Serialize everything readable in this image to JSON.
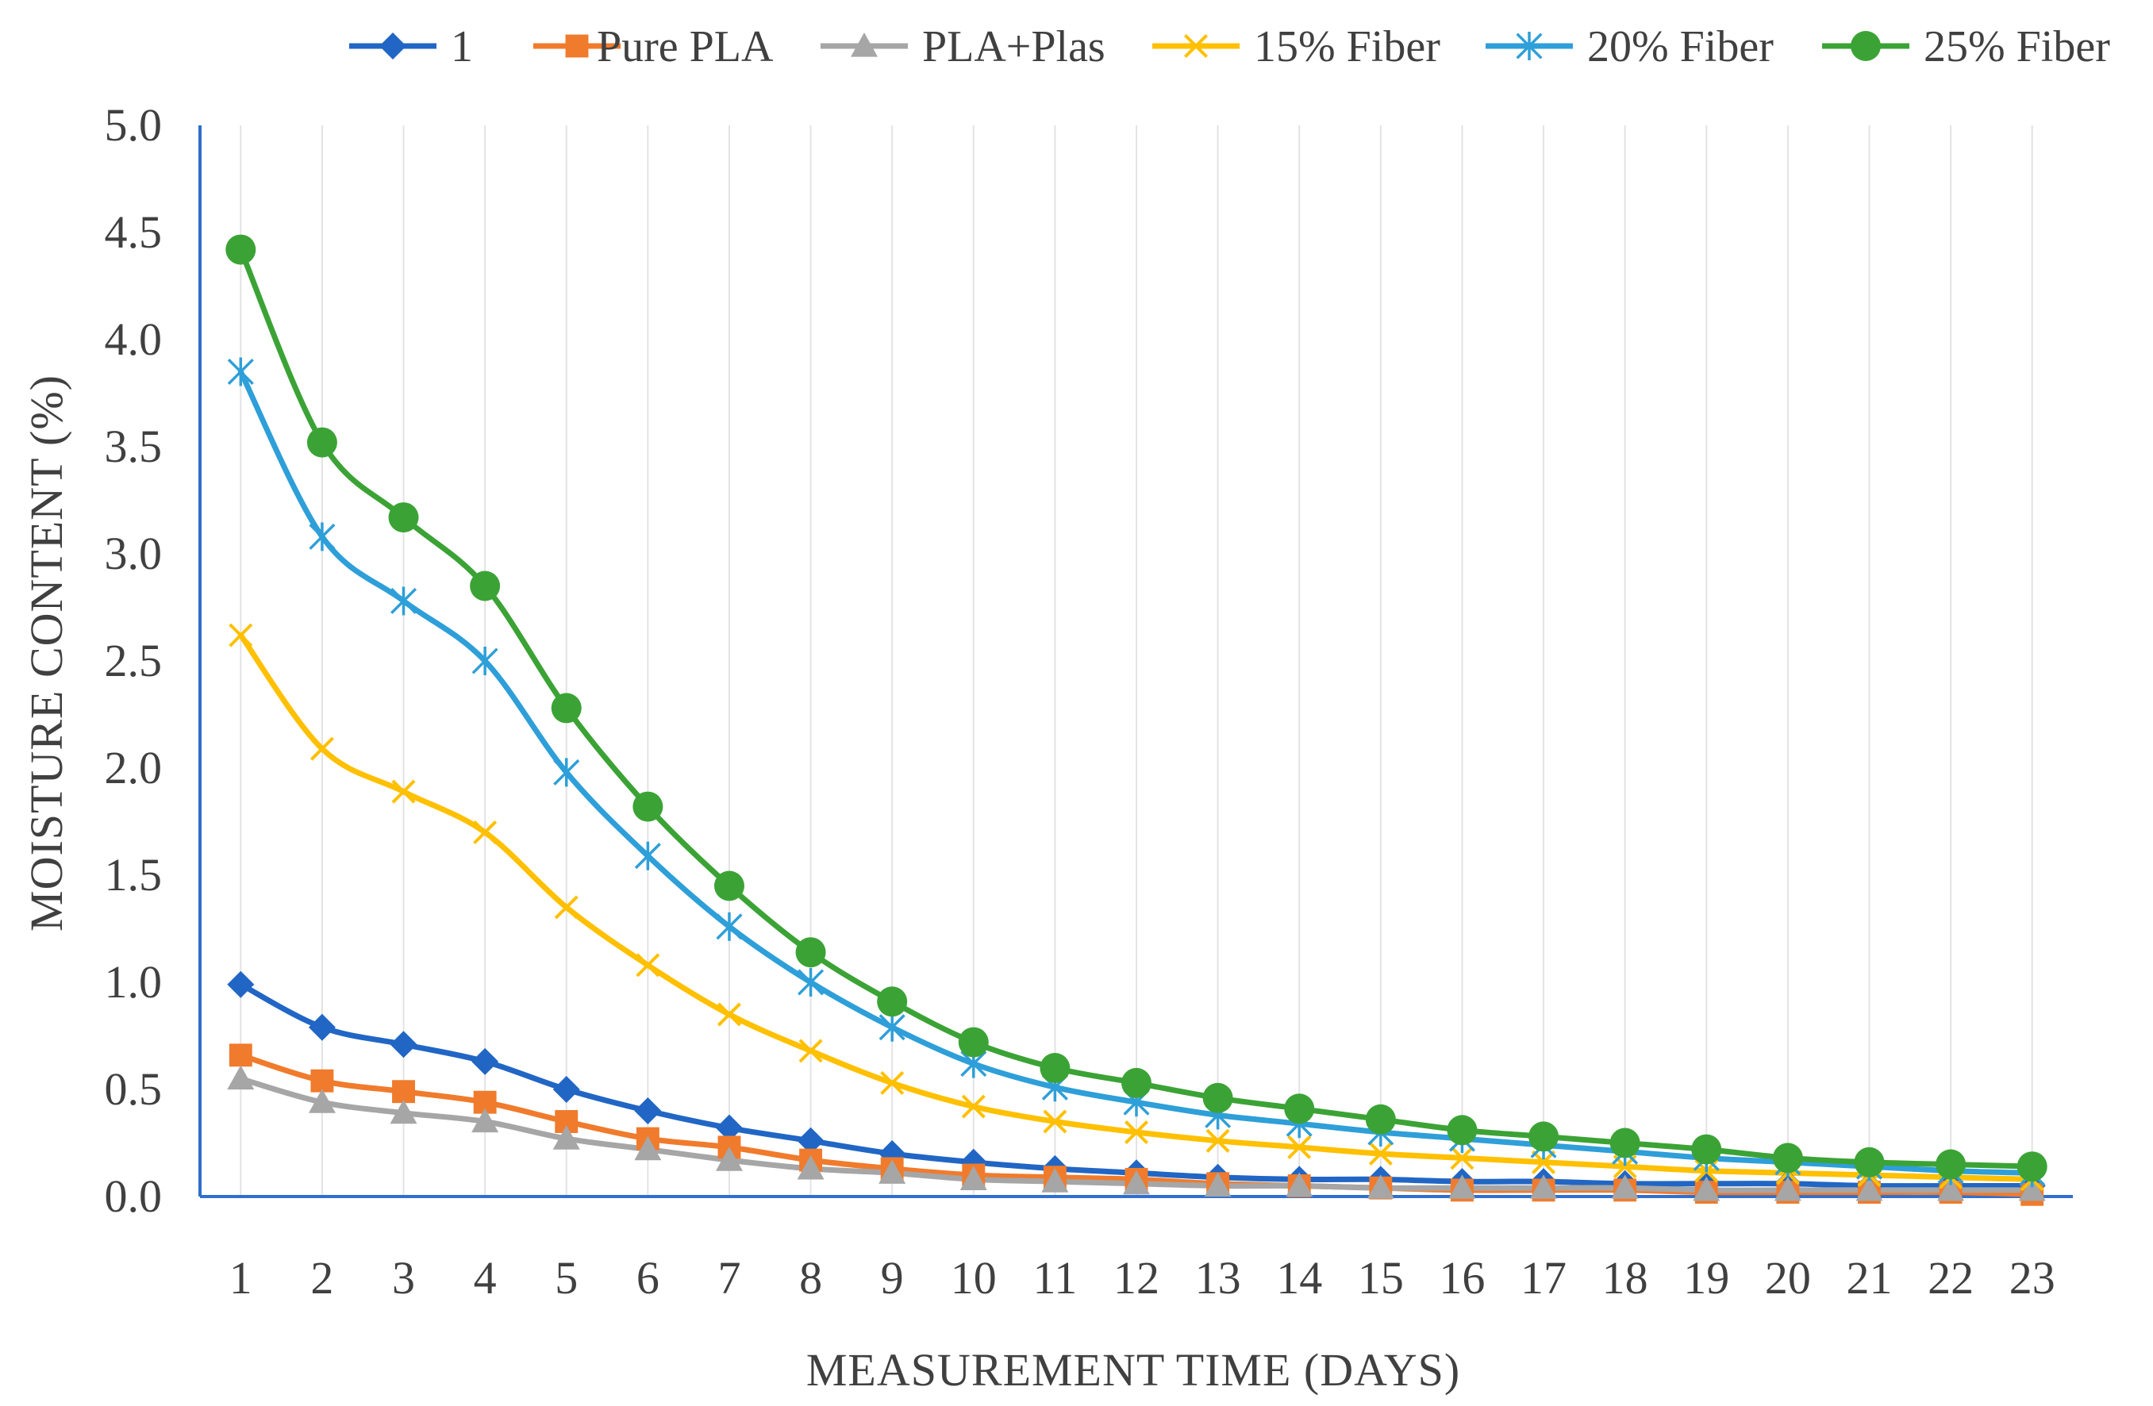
{
  "chart_data": {
    "type": "line",
    "title": "",
    "xlabel": "MEASUREMENT TIME (DAYS)",
    "ylabel": "MOISTURE CONTENT (%)",
    "ylim": [
      0.0,
      5.0
    ],
    "yticks": [
      "0.0",
      "0.5",
      "1.0",
      "1.5",
      "2.0",
      "2.5",
      "3.0",
      "3.5",
      "4.0",
      "4.5",
      "5.0"
    ],
    "x": [
      "1",
      "2",
      "3",
      "4",
      "5",
      "6",
      "7",
      "8",
      "9",
      "10",
      "11",
      "12",
      "13",
      "14",
      "15",
      "16",
      "17",
      "18",
      "19",
      "20",
      "21",
      "22",
      "23"
    ],
    "grid": "vertical",
    "legend_position": "top",
    "series": [
      {
        "name": "1",
        "color": "#2166c4",
        "marker": "diamond",
        "values": [
          0.99,
          0.79,
          0.71,
          0.63,
          0.5,
          0.4,
          0.32,
          0.26,
          0.2,
          0.16,
          0.13,
          0.11,
          0.09,
          0.08,
          0.08,
          0.07,
          0.07,
          0.06,
          0.06,
          0.06,
          0.05,
          0.05,
          0.05
        ]
      },
      {
        "name": "Pure PLA",
        "color": "#f07b2c",
        "marker": "square",
        "values": [
          0.66,
          0.54,
          0.49,
          0.44,
          0.35,
          0.27,
          0.23,
          0.17,
          0.13,
          0.1,
          0.09,
          0.08,
          0.06,
          0.05,
          0.04,
          0.03,
          0.03,
          0.03,
          0.02,
          0.02,
          0.02,
          0.02,
          0.01
        ]
      },
      {
        "name": "PLA+Plas",
        "color": "#a6a6a6",
        "marker": "triangle",
        "values": [
          0.55,
          0.44,
          0.39,
          0.35,
          0.27,
          0.22,
          0.17,
          0.13,
          0.11,
          0.08,
          0.07,
          0.06,
          0.05,
          0.05,
          0.04,
          0.04,
          0.04,
          0.04,
          0.03,
          0.03,
          0.03,
          0.03,
          0.03
        ]
      },
      {
        "name": "15% Fiber",
        "color": "#ffc000",
        "marker": "x",
        "values": [
          2.62,
          2.09,
          1.89,
          1.7,
          1.35,
          1.08,
          0.85,
          0.68,
          0.53,
          0.42,
          0.35,
          0.3,
          0.26,
          0.23,
          0.2,
          0.18,
          0.16,
          0.14,
          0.12,
          0.11,
          0.1,
          0.09,
          0.08
        ]
      },
      {
        "name": "20% Fiber",
        "color": "#2e9fd8",
        "marker": "star",
        "values": [
          3.85,
          3.08,
          2.78,
          2.5,
          1.98,
          1.59,
          1.26,
          1.0,
          0.79,
          0.62,
          0.51,
          0.44,
          0.38,
          0.34,
          0.3,
          0.27,
          0.24,
          0.21,
          0.18,
          0.16,
          0.14,
          0.12,
          0.11
        ]
      },
      {
        "name": "25% Fiber",
        "color": "#3ba335",
        "marker": "circle",
        "values": [
          4.42,
          3.52,
          3.17,
          2.85,
          2.28,
          1.82,
          1.45,
          1.14,
          0.91,
          0.72,
          0.6,
          0.53,
          0.46,
          0.41,
          0.36,
          0.31,
          0.28,
          0.25,
          0.22,
          0.18,
          0.16,
          0.15,
          0.14
        ]
      }
    ]
  }
}
